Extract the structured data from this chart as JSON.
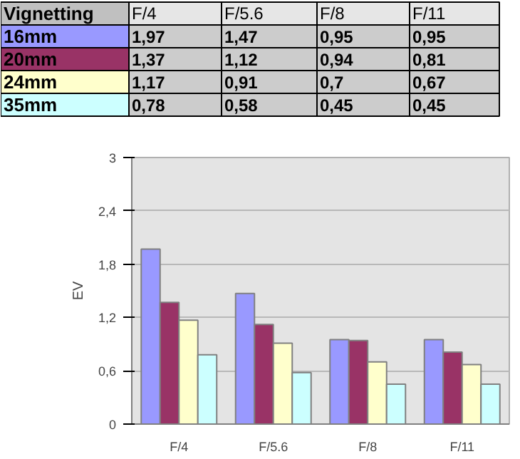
{
  "chart_data": {
    "type": "bar",
    "ylabel": "EV",
    "legend_title": "Vignetting",
    "legend": "top",
    "grid": "y",
    "categories": [
      "F/4",
      "F/5.6",
      "F/8",
      "F/11"
    ],
    "series": [
      {
        "name": "16mm",
        "color": "#9999ff",
        "values": [
          1.97,
          1.47,
          0.95,
          0.95
        ],
        "value_labels": [
          "1,97",
          "1,47",
          "0,95",
          "0,95"
        ]
      },
      {
        "name": "20mm",
        "color": "#993366",
        "values": [
          1.37,
          1.12,
          0.94,
          0.81
        ],
        "value_labels": [
          "1,37",
          "1,12",
          "0,94",
          "0,81"
        ]
      },
      {
        "name": "24mm",
        "color": "#ffffcc",
        "values": [
          1.17,
          0.91,
          0.7,
          0.67
        ],
        "value_labels": [
          "1,17",
          "0,91",
          "0,7",
          "0,67"
        ]
      },
      {
        "name": "35mm",
        "color": "#ccffff",
        "values": [
          0.78,
          0.58,
          0.45,
          0.45
        ],
        "value_labels": [
          "0,78",
          "0,58",
          "0,45",
          "0,45"
        ]
      }
    ],
    "ylim": [
      0,
      3
    ],
    "yticks": [
      0,
      {
        "value": 0.6,
        "label": "0,6"
      },
      {
        "value": 1.2,
        "label": "1,2"
      },
      {
        "value": 1.8,
        "label": "1,8"
      },
      {
        "value": 2.4,
        "label": "2,4"
      },
      3
    ]
  }
}
